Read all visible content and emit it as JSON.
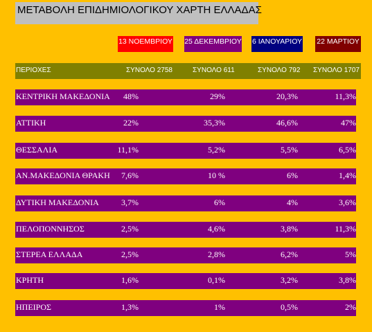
{
  "title": "ΜΕΤΑΒΟΛΗ ΕΠΙΔΗΜΙΟΛΟΓΙΚΟΥ ΧΑΡΤΗ ΕΛΛΑΔΑΣ",
  "dates": [
    {
      "label": "13 ΝΟΕΜΒΡΙΟΥ",
      "color": "#FF0000"
    },
    {
      "label": "25 ΔΕΚΕΜΒΡΙΟΥ",
      "color": "#7F007F"
    },
    {
      "label": "6 ΙΑΝΟΥΑΡΙΟΥ",
      "color": "#000080"
    },
    {
      "label": "22 ΜΑΡΤΙΟΥ",
      "color": "#800000"
    }
  ],
  "header": {
    "region": "ΠΕΡΙΟΧΕΣ",
    "totals": [
      "ΣΥΝΟΛΟ 2758",
      "ΣΥΝΟΛΟ  611",
      "ΣΥΝΟΛΟ 792",
      "ΣΥΝΟΛΟ 1707"
    ]
  },
  "rows": [
    {
      "name": "ΚΕΝΤΡΙΚΗ ΜΑΚΕΔΟΝΙΑ",
      "values": [
        "48%",
        "29%",
        "20,3%",
        "11,3%"
      ]
    },
    {
      "name": "ΑΤΤΙΚΗ",
      "values": [
        "22%",
        "35,3%",
        "46,6%",
        "47%"
      ]
    },
    {
      "name": "ΘΕΣΣΑΛΙΑ",
      "values": [
        "11,1%",
        "5,2%",
        "5,5%",
        "6,5%"
      ]
    },
    {
      "name": "ΑΝ.ΜΑΚΕΔΟΝΙΑ ΘΡΑΚΗ",
      "values": [
        "7,6%",
        "10 %",
        "6%",
        "1,4%"
      ]
    },
    {
      "name": "ΔΥΤΙΚΗ ΜΑΚΕΔΟΝΙΑ",
      "values": [
        "3,7%",
        "6%",
        "4%",
        "3,6%"
      ]
    },
    {
      "name": "ΠΕΛΟΠΟΝΝΗΣΟΣ",
      "values": [
        "2,5%",
        "4,6%",
        "3,8%",
        "11,3%"
      ]
    },
    {
      "name": "ΣΤΕΡΕΑ ΕΛΛΑΔΑ",
      "values": [
        "2,5%",
        "2,8%",
        "6,2%",
        "5%"
      ]
    },
    {
      "name": "ΚΡΗΤΗ",
      "values": [
        "1,6%",
        "0,1%",
        "3,2%",
        "3,8%"
      ]
    },
    {
      "name": "ΗΠΕΙΡΟΣ",
      "values": [
        "1,3%",
        "1%",
        "0,5%",
        "2%"
      ]
    }
  ]
}
